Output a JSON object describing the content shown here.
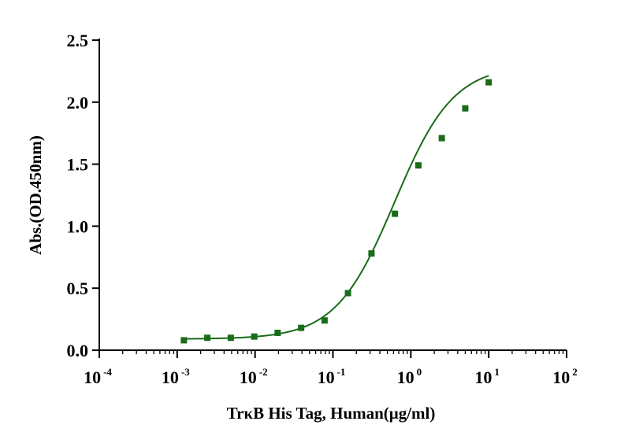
{
  "chart_data": {
    "type": "scatter",
    "title": "",
    "xlabel": "TrκB His Tag, Human(μg/ml)",
    "ylabel": "Abs.(OD.450nm)",
    "xscale": "log",
    "xlim": [
      0.0001,
      100
    ],
    "ylim": [
      0,
      2.5
    ],
    "grid": false,
    "legend": "none",
    "x_ticks": [
      {
        "value": 0.0001,
        "base": "10",
        "exp": "-4"
      },
      {
        "value": 0.001,
        "base": "10",
        "exp": "-3"
      },
      {
        "value": 0.01,
        "base": "10",
        "exp": "-2"
      },
      {
        "value": 0.1,
        "base": "10",
        "exp": "-1"
      },
      {
        "value": 1,
        "base": "10",
        "exp": "0"
      },
      {
        "value": 10,
        "base": "10",
        "exp": "1"
      },
      {
        "value": 100,
        "base": "10",
        "exp": "2"
      }
    ],
    "y_ticks": [
      {
        "value": 0.0,
        "label": "0.0"
      },
      {
        "value": 0.5,
        "label": "0.5"
      },
      {
        "value": 1.0,
        "label": "1.0"
      },
      {
        "value": 1.5,
        "label": "1.5"
      },
      {
        "value": 2.0,
        "label": "2.0"
      },
      {
        "value": 2.5,
        "label": "2.5"
      }
    ],
    "series": [
      {
        "color": "#1a6b1a",
        "marker": "square",
        "points": [
          {
            "x": 0.00122,
            "y": 0.08
          },
          {
            "x": 0.00244,
            "y": 0.1
          },
          {
            "x": 0.00488,
            "y": 0.1
          },
          {
            "x": 0.00977,
            "y": 0.11
          },
          {
            "x": 0.0195,
            "y": 0.14
          },
          {
            "x": 0.0391,
            "y": 0.18
          },
          {
            "x": 0.0781,
            "y": 0.24
          },
          {
            "x": 0.156,
            "y": 0.46
          },
          {
            "x": 0.3125,
            "y": 0.78
          },
          {
            "x": 0.625,
            "y": 1.1
          },
          {
            "x": 1.25,
            "y": 1.49
          },
          {
            "x": 2.5,
            "y": 1.71
          },
          {
            "x": 5,
            "y": 1.95
          },
          {
            "x": 10,
            "y": 2.16
          }
        ],
        "fit": {
          "model": "4PL",
          "bottom": 0.09,
          "top": 2.3,
          "ec50": 0.62,
          "hill": 1.15,
          "x_range": [
            0.00122,
            10
          ]
        }
      }
    ]
  }
}
